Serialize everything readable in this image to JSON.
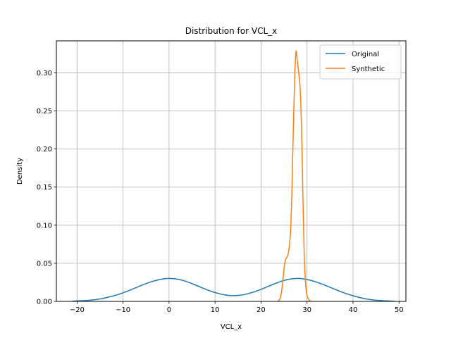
{
  "chart_data": {
    "type": "line",
    "title": "Distribution for VCL_x",
    "xlabel": "VCL_x",
    "ylabel": "Density",
    "xlim": [
      -24.5,
      51.5
    ],
    "ylim": [
      0,
      0.342
    ],
    "xticks": [
      -20,
      -10,
      0,
      10,
      20,
      30,
      40,
      50
    ],
    "xtick_labels": [
      "−20",
      "−10",
      "0",
      "10",
      "20",
      "30",
      "40",
      "50"
    ],
    "yticks": [
      0.0,
      0.05,
      0.1,
      0.15,
      0.2,
      0.25,
      0.3
    ],
    "ytick_labels": [
      "0.00",
      "0.05",
      "0.10",
      "0.15",
      "0.20",
      "0.25",
      "0.30"
    ],
    "grid": true,
    "legend_position": "upper right",
    "series": [
      {
        "name": "Original",
        "color": "#1f77b4",
        "x": [
          -21,
          -18,
          -15,
          -12,
          -10,
          -8,
          -6,
          -4,
          -2,
          0,
          2,
          4,
          6,
          8,
          10,
          12,
          14,
          16,
          18,
          20,
          22,
          24,
          26,
          28,
          30,
          32,
          34,
          36,
          38,
          40,
          42,
          44,
          46,
          49
        ],
        "y": [
          0.0003,
          0.0011,
          0.0032,
          0.0074,
          0.0113,
          0.016,
          0.021,
          0.0255,
          0.0288,
          0.0302,
          0.029,
          0.0256,
          0.0208,
          0.0158,
          0.0116,
          0.0087,
          0.0075,
          0.0086,
          0.0116,
          0.0158,
          0.0208,
          0.0256,
          0.029,
          0.0302,
          0.0288,
          0.0255,
          0.021,
          0.016,
          0.0113,
          0.0074,
          0.0043,
          0.0022,
          0.001,
          0.0002
        ]
      },
      {
        "name": "Synthetic",
        "color": "#ff7f0e",
        "x": [
          23.6,
          24.0,
          24.4,
          24.8,
          25.1,
          25.4,
          25.8,
          26.1,
          26.4,
          26.7,
          27.0,
          27.3,
          27.6,
          27.9,
          28.2,
          28.5,
          28.8,
          29.1,
          29.4,
          29.7,
          30.0,
          30.3,
          30.6,
          30.9
        ],
        "y": [
          0.0,
          0.002,
          0.01,
          0.03,
          0.048,
          0.056,
          0.06,
          0.07,
          0.09,
          0.14,
          0.22,
          0.29,
          0.328,
          0.315,
          0.3,
          0.28,
          0.23,
          0.14,
          0.06,
          0.022,
          0.008,
          0.003,
          0.001,
          0.0
        ]
      }
    ]
  }
}
